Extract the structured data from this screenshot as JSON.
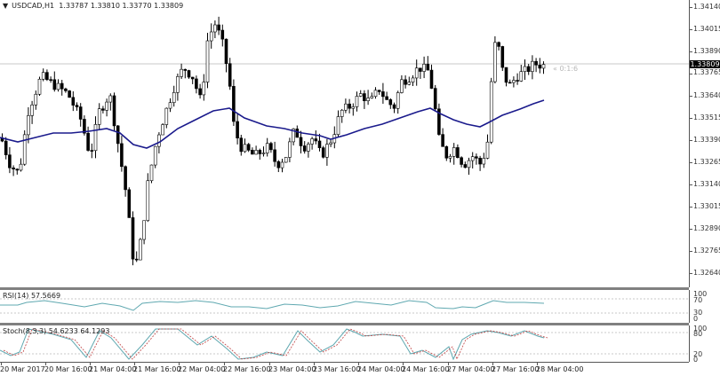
{
  "header": {
    "symbol_timeframe": "USDCAD,H1",
    "ohlc": "1.33787 1.33810 1.33770 1.33809",
    "dropdown_icon": "triangle-down"
  },
  "price_axis": {
    "labels": [
      "1.34140",
      "1.34015",
      "1.33890",
      "1.33765",
      "1.33640",
      "1.33515",
      "1.33390",
      "1.33265",
      "1.33140",
      "1.33015",
      "1.32890",
      "1.32765",
      "1.32640"
    ],
    "current_price": "1.33809"
  },
  "countdown": "« 0:1:6",
  "rsi": {
    "label": "RSI(14) 57.5669",
    "levels": [
      "100",
      "70",
      "30",
      "0"
    ]
  },
  "stoch": {
    "label": "Stoch(8,3,3) 54.6233 64.1293",
    "levels": [
      "100",
      "80",
      "20",
      "0"
    ]
  },
  "time_axis": [
    "20 Mar 2017",
    "20 Mar 16:00",
    "21 Mar 04:00",
    "21 Mar 16:00",
    "22 Mar 04:00",
    "22 Mar 16:00",
    "23 Mar 04:00",
    "23 Mar 16:00",
    "24 Mar 04:00",
    "24 Mar 16:00",
    "27 Mar 04:00",
    "27 Mar 16:00",
    "28 Mar 04:00"
  ],
  "colors": {
    "ma": "#1a1a8c",
    "bull": "#ffffff",
    "bear": "#000000",
    "rsi": "#5fa8b0",
    "stoch_main": "#5fa8b0",
    "stoch_signal": "#c04040",
    "grid": "#c8c8c8"
  },
  "chart_data": [
    {
      "type": "candlestick",
      "title": "USDCAD,H1",
      "ylim": [
        1.3258,
        1.342
      ],
      "x": [
        "20 Mar 2017",
        "20 Mar 16:00",
        "21 Mar 04:00",
        "21 Mar 16:00",
        "22 Mar 04:00",
        "22 Mar 16:00",
        "23 Mar 04:00",
        "23 Mar 16:00",
        "24 Mar 04:00",
        "24 Mar 16:00",
        "27 Mar 04:00",
        "27 Mar 16:00",
        "28 Mar 04:00"
      ],
      "approx_close_at_ticks": [
        1.333,
        1.336,
        1.3335,
        1.329,
        1.338,
        1.334,
        1.3325,
        1.333,
        1.3375,
        1.337,
        1.333,
        1.3385,
        1.3381
      ],
      "series": [
        {
          "name": "Moving Average",
          "approx_values": [
            1.334,
            1.3352,
            1.3346,
            1.3338,
            1.336,
            1.3354,
            1.3345,
            1.3343,
            1.3352,
            1.3357,
            1.3347,
            1.3357,
            1.3364
          ]
        }
      ],
      "last_ohlc": {
        "open": 1.33787,
        "high": 1.3381,
        "low": 1.3377,
        "close": 1.33809
      }
    },
    {
      "type": "line",
      "title": "RSI(14)",
      "last_value": 57.5669,
      "ylim": [
        0,
        100
      ],
      "levels": [
        30,
        70
      ]
    },
    {
      "type": "line",
      "title": "Stoch(8,3,3)",
      "series": [
        {
          "name": "%K",
          "last_value": 54.6233
        },
        {
          "name": "%D",
          "last_value": 64.1293
        }
      ],
      "ylim": [
        0,
        100
      ],
      "levels": [
        20,
        80
      ]
    }
  ]
}
